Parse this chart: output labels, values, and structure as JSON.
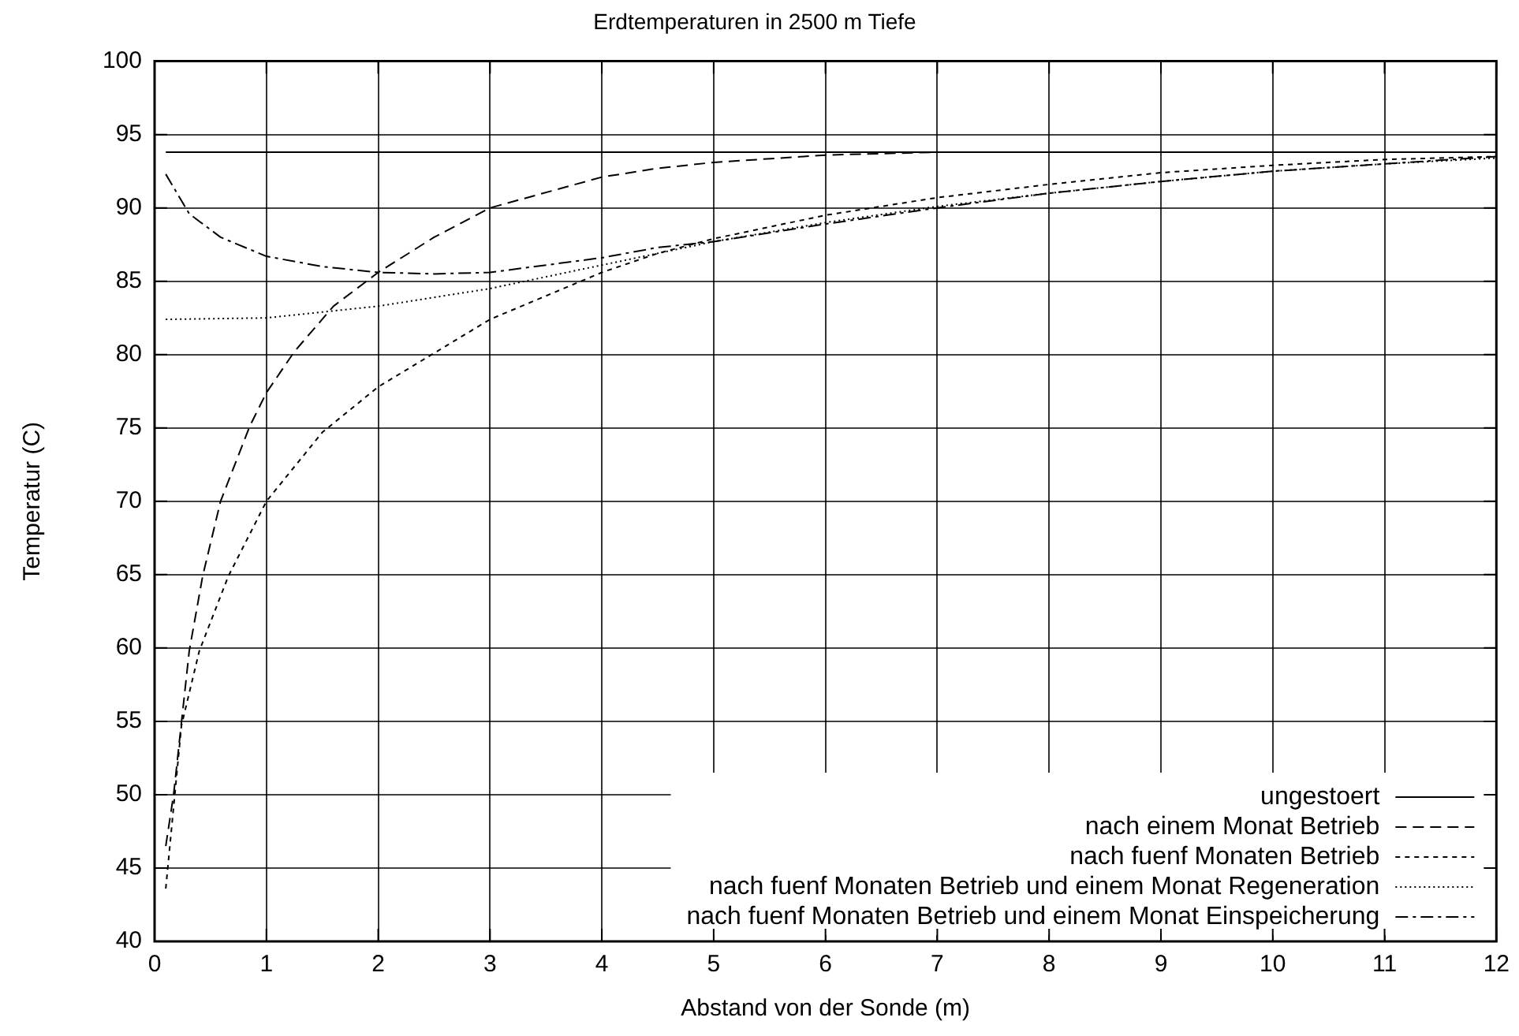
{
  "chart_data": {
    "type": "line",
    "title": "Erdtemperaturen in 2500 m Tiefe",
    "xlabel": "Abstand von der Sonde (m)",
    "ylabel": "Temperatur (C)",
    "xlim": [
      0,
      12
    ],
    "xticks": [
      0,
      1,
      2,
      3,
      4,
      5,
      6,
      7,
      8,
      9,
      10,
      11,
      12
    ],
    "ylim": [
      40,
      100
    ],
    "yticks": [
      40,
      45,
      50,
      55,
      60,
      65,
      70,
      75,
      80,
      85,
      90,
      95,
      100
    ],
    "grid": true,
    "legend": "bottom right",
    "marker": "none",
    "series": [
      {
        "name": "ungestoert",
        "color": "#000000",
        "line_style": "solid",
        "x": [
          0.1,
          12
        ],
        "values": [
          93.8,
          93.8
        ]
      },
      {
        "name": "nach einem Monat Betrieb",
        "color": "#000000",
        "line_style": "dashed",
        "x": [
          0.1,
          0.17,
          0.31,
          0.43,
          0.59,
          0.85,
          1,
          1.25,
          1.6,
          2,
          2.5,
          3,
          4,
          4.5,
          5,
          6,
          7,
          8,
          9,
          10,
          11,
          12
        ],
        "values": [
          46.5,
          50,
          59.8,
          64.9,
          70,
          75.1,
          77.4,
          80.2,
          83.3,
          85.6,
          88,
          90,
          92.1,
          92.7,
          93.1,
          93.6,
          93.8,
          93.8,
          93.8,
          93.8,
          93.8,
          93.8
        ]
      },
      {
        "name": "nach fuenf Monaten Betrieb",
        "color": "#000000",
        "line_style": "shortdash",
        "x": [
          0.1,
          0.24,
          0.4,
          0.66,
          1,
          1.5,
          2,
          3,
          4,
          4.5,
          5,
          6,
          7,
          8,
          9,
          10,
          11,
          12
        ],
        "values": [
          43.6,
          54.7,
          59.8,
          64.9,
          70,
          74.7,
          77.8,
          82.4,
          85.6,
          86.9,
          87.9,
          89.5,
          90.7,
          91.6,
          92.4,
          92.9,
          93.3,
          93.5
        ]
      },
      {
        "name": "nach fuenf Monaten Betrieb und einem Monat Regeneration",
        "color": "#000000",
        "line_style": "dotted",
        "x": [
          0.1,
          1,
          2,
          3,
          4,
          5,
          6,
          7,
          8,
          9,
          10,
          11,
          12
        ],
        "values": [
          82.4,
          82.5,
          83.3,
          84.5,
          86.1,
          87.7,
          89,
          90.1,
          91,
          91.8,
          92.5,
          93,
          93.4
        ]
      },
      {
        "name": "nach fuenf Monaten Betrieb und einem Monat Einspeicherung",
        "color": "#000000",
        "line_style": "dashdot",
        "x": [
          0.1,
          0.31,
          0.59,
          1,
          1.5,
          2,
          2.5,
          3,
          4,
          4.5,
          5,
          6,
          7,
          8,
          9,
          10,
          11,
          12
        ],
        "values": [
          92.3,
          89.6,
          88,
          86.7,
          86,
          85.6,
          85.5,
          85.6,
          86.6,
          87.3,
          87.7,
          88.9,
          90,
          91,
          91.8,
          92.5,
          93,
          93.5
        ]
      }
    ]
  }
}
